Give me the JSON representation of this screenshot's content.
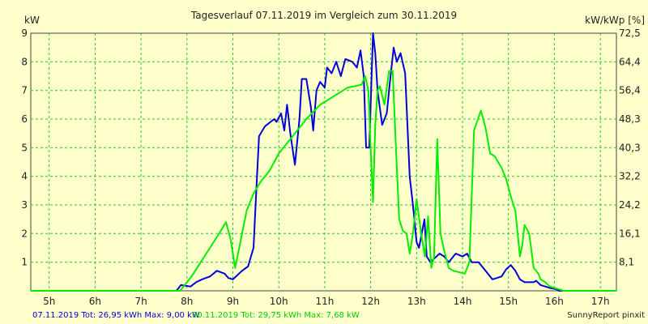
{
  "chart_data": {
    "type": "line",
    "title": "Tagesverlauf 07.11.2019 im Vergleich zum 30.11.2019",
    "ylabel_left": "kW",
    "ylabel_right": "kW/kWp [%]",
    "xlim": [
      4.6,
      17.35
    ],
    "ylim": [
      0,
      9
    ],
    "x_ticks": [
      {
        "value": 5,
        "label": "5h"
      },
      {
        "value": 6,
        "label": "6h"
      },
      {
        "value": 7,
        "label": "7h"
      },
      {
        "value": 8,
        "label": "8h"
      },
      {
        "value": 9,
        "label": "9h"
      },
      {
        "value": 10,
        "label": "10h"
      },
      {
        "value": 11,
        "label": "11h"
      },
      {
        "value": 12,
        "label": "12h"
      },
      {
        "value": 13,
        "label": "13h"
      },
      {
        "value": 14,
        "label": "14h"
      },
      {
        "value": 15,
        "label": "15h"
      },
      {
        "value": 16,
        "label": "16h"
      },
      {
        "value": 17,
        "label": "17h"
      }
    ],
    "y_ticks_left": [
      {
        "value": 1,
        "label": "1"
      },
      {
        "value": 2,
        "label": "2"
      },
      {
        "value": 3,
        "label": "3"
      },
      {
        "value": 4,
        "label": "4"
      },
      {
        "value": 5,
        "label": "5"
      },
      {
        "value": 6,
        "label": "6"
      },
      {
        "value": 7,
        "label": "7"
      },
      {
        "value": 8,
        "label": "8"
      },
      {
        "value": 9,
        "label": "9"
      }
    ],
    "y_ticks_right": [
      {
        "value": 1,
        "label": "8,1"
      },
      {
        "value": 2,
        "label": "16,1"
      },
      {
        "value": 3,
        "label": "24,2"
      },
      {
        "value": 4,
        "label": "32,2"
      },
      {
        "value": 5,
        "label": "40,3"
      },
      {
        "value": 6,
        "label": "48,3"
      },
      {
        "value": 7,
        "label": "56,4"
      },
      {
        "value": 8,
        "label": "64,4"
      },
      {
        "value": 9,
        "label": "72,5"
      }
    ],
    "grid": true,
    "legend_placement": "bottom-left",
    "series": [
      {
        "name": "07.11.2019 Tot: 26,95 kWh Max: 9,00 kW",
        "color": "#0000dd",
        "points": [
          [
            4.6,
            0
          ],
          [
            7.77,
            0
          ],
          [
            7.87,
            0.2
          ],
          [
            8.08,
            0.15
          ],
          [
            8.2,
            0.3
          ],
          [
            8.33,
            0.4
          ],
          [
            8.5,
            0.5
          ],
          [
            8.65,
            0.7
          ],
          [
            8.82,
            0.6
          ],
          [
            8.9,
            0.45
          ],
          [
            9.0,
            0.4
          ],
          [
            9.2,
            0.7
          ],
          [
            9.33,
            0.85
          ],
          [
            9.45,
            1.5
          ],
          [
            9.5,
            3.2
          ],
          [
            9.57,
            5.4
          ],
          [
            9.7,
            5.75
          ],
          [
            9.9,
            6.0
          ],
          [
            9.95,
            5.9
          ],
          [
            10.05,
            6.2
          ],
          [
            10.12,
            5.6
          ],
          [
            10.18,
            6.5
          ],
          [
            10.25,
            5.5
          ],
          [
            10.35,
            4.4
          ],
          [
            10.45,
            6.0
          ],
          [
            10.5,
            7.4
          ],
          [
            10.6,
            7.4
          ],
          [
            10.7,
            6.4
          ],
          [
            10.75,
            5.6
          ],
          [
            10.82,
            7.0
          ],
          [
            10.9,
            7.3
          ],
          [
            11.0,
            7.1
          ],
          [
            11.05,
            7.8
          ],
          [
            11.15,
            7.6
          ],
          [
            11.25,
            8.0
          ],
          [
            11.35,
            7.5
          ],
          [
            11.45,
            8.1
          ],
          [
            11.6,
            8.0
          ],
          [
            11.7,
            7.8
          ],
          [
            11.78,
            8.4
          ],
          [
            11.85,
            7.5
          ],
          [
            11.9,
            5.0
          ],
          [
            11.97,
            5.0
          ],
          [
            12.05,
            9.0
          ],
          [
            12.1,
            8.3
          ],
          [
            12.15,
            7.0
          ],
          [
            12.25,
            5.8
          ],
          [
            12.35,
            6.2
          ],
          [
            12.42,
            7.3
          ],
          [
            12.5,
            8.5
          ],
          [
            12.57,
            8.0
          ],
          [
            12.65,
            8.3
          ],
          [
            12.75,
            7.6
          ],
          [
            12.85,
            4.0
          ],
          [
            12.92,
            3.0
          ],
          [
            13.0,
            1.7
          ],
          [
            13.05,
            1.5
          ],
          [
            13.1,
            1.9
          ],
          [
            13.17,
            2.5
          ],
          [
            13.22,
            1.2
          ],
          [
            13.3,
            1.0
          ],
          [
            13.5,
            1.3
          ],
          [
            13.6,
            1.2
          ],
          [
            13.7,
            1.0
          ],
          [
            13.85,
            1.3
          ],
          [
            14.0,
            1.2
          ],
          [
            14.1,
            1.3
          ],
          [
            14.2,
            1.0
          ],
          [
            14.35,
            1.0
          ],
          [
            14.5,
            0.7
          ],
          [
            14.65,
            0.4
          ],
          [
            14.85,
            0.5
          ],
          [
            14.95,
            0.75
          ],
          [
            15.05,
            0.9
          ],
          [
            15.15,
            0.7
          ],
          [
            15.25,
            0.4
          ],
          [
            15.35,
            0.3
          ],
          [
            15.55,
            0.3
          ],
          [
            15.6,
            0.35
          ],
          [
            15.7,
            0.2
          ],
          [
            15.8,
            0.15
          ],
          [
            15.9,
            0.1
          ],
          [
            16.05,
            0.05
          ],
          [
            16.1,
            0
          ],
          [
            17.35,
            0
          ]
        ]
      },
      {
        "name": "30.11.2019 Tot: 29,75 kWh Max: 7,68 kW",
        "color": "#00ee00",
        "points": [
          [
            4.6,
            0
          ],
          [
            7.85,
            0
          ],
          [
            8.1,
            0.5
          ],
          [
            8.3,
            1.0
          ],
          [
            8.5,
            1.5
          ],
          [
            8.7,
            2.0
          ],
          [
            8.85,
            2.4
          ],
          [
            8.95,
            1.8
          ],
          [
            9.05,
            0.8
          ],
          [
            9.15,
            1.6
          ],
          [
            9.3,
            2.8
          ],
          [
            9.45,
            3.4
          ],
          [
            9.6,
            3.8
          ],
          [
            9.8,
            4.2
          ],
          [
            10.0,
            4.8
          ],
          [
            10.3,
            5.4
          ],
          [
            10.6,
            6.0
          ],
          [
            10.9,
            6.5
          ],
          [
            11.2,
            6.8
          ],
          [
            11.5,
            7.1
          ],
          [
            11.8,
            7.2
          ],
          [
            11.88,
            7.5
          ],
          [
            11.95,
            7.0
          ],
          [
            12.0,
            5.0
          ],
          [
            12.05,
            3.1
          ],
          [
            12.1,
            5.8
          ],
          [
            12.15,
            7.0
          ],
          [
            12.2,
            7.15
          ],
          [
            12.3,
            6.5
          ],
          [
            12.4,
            7.68
          ],
          [
            12.48,
            7.68
          ],
          [
            12.55,
            5.0
          ],
          [
            12.62,
            2.5
          ],
          [
            12.7,
            2.1
          ],
          [
            12.78,
            2.0
          ],
          [
            12.85,
            1.3
          ],
          [
            12.92,
            2.0
          ],
          [
            13.0,
            3.2
          ],
          [
            13.1,
            2.0
          ],
          [
            13.18,
            1.2
          ],
          [
            13.25,
            2.6
          ],
          [
            13.32,
            0.8
          ],
          [
            13.38,
            1.2
          ],
          [
            13.45,
            5.3
          ],
          [
            13.52,
            2.0
          ],
          [
            13.6,
            1.4
          ],
          [
            13.7,
            0.8
          ],
          [
            13.8,
            0.7
          ],
          [
            14.05,
            0.6
          ],
          [
            14.15,
            1.0
          ],
          [
            14.25,
            5.6
          ],
          [
            14.4,
            6.3
          ],
          [
            14.5,
            5.7
          ],
          [
            14.6,
            4.8
          ],
          [
            14.7,
            4.7
          ],
          [
            14.85,
            4.3
          ],
          [
            14.95,
            3.9
          ],
          [
            15.05,
            3.3
          ],
          [
            15.15,
            2.8
          ],
          [
            15.2,
            2.0
          ],
          [
            15.25,
            1.2
          ],
          [
            15.3,
            1.6
          ],
          [
            15.35,
            2.3
          ],
          [
            15.45,
            2.0
          ],
          [
            15.55,
            0.8
          ],
          [
            15.65,
            0.6
          ],
          [
            15.7,
            0.4
          ],
          [
            15.8,
            0.3
          ],
          [
            15.9,
            0.15
          ],
          [
            16.1,
            0.05
          ],
          [
            16.2,
            0
          ],
          [
            17.35,
            0
          ]
        ]
      }
    ]
  },
  "legend_entries": [
    {
      "label": "07.11.2019 Tot: 26,95 kWh Max: 9,00 kW",
      "color": "#0000dd"
    },
    {
      "label": "30.11.2019 Tot: 29,75 kWh Max: 7,68 kW",
      "color": "#00ee00"
    }
  ],
  "footer_brand": "SunnyReport pinxit"
}
